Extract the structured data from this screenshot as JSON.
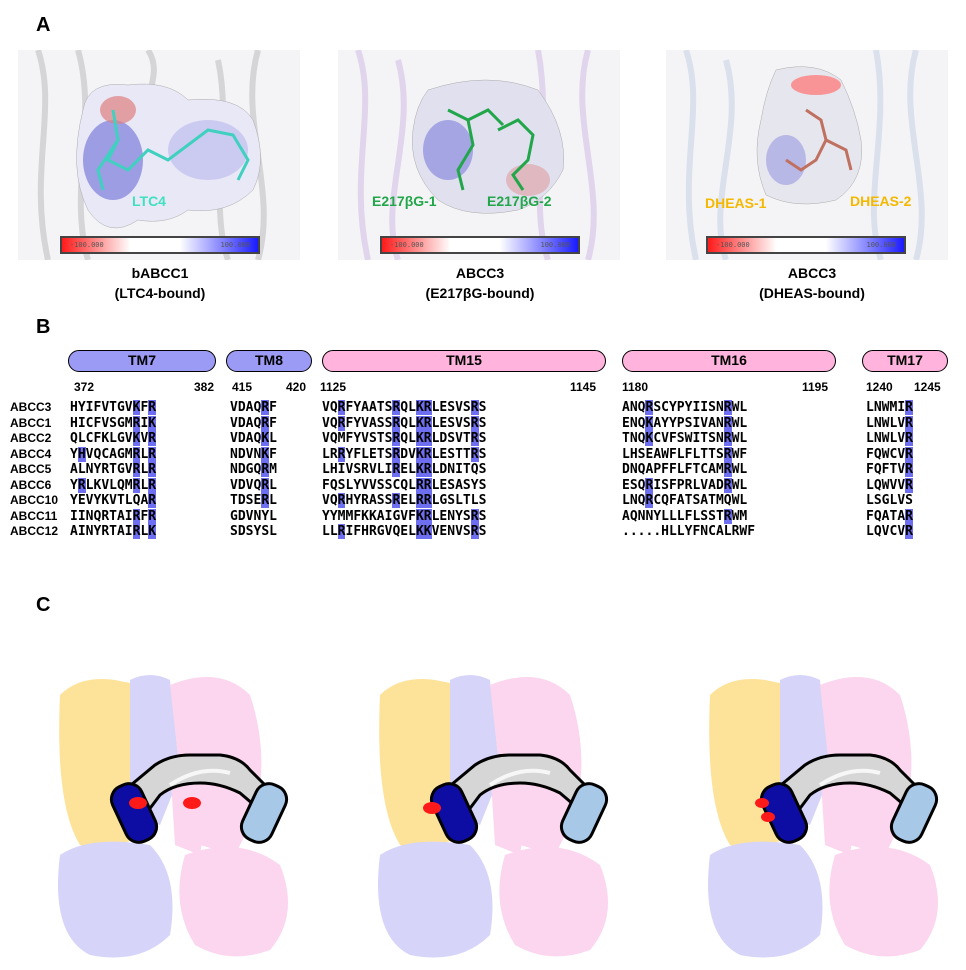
{
  "panels": {
    "a": "A",
    "b": "B",
    "c": "C"
  },
  "panel_a": {
    "structures": [
      {
        "caption_line1": "bABCC1",
        "caption_line2": "(LTC4-bound)",
        "ligands": [
          "LTC4"
        ],
        "ligand_color": "#40e0c0"
      },
      {
        "caption_line1": "ABCC3",
        "caption_line2": "(E217βG-bound)",
        "ligands": [
          "E217βG-1",
          "E217βG-2"
        ],
        "ligand_color": "#22a64a"
      },
      {
        "caption_line1": "ABCC3",
        "caption_line2": "(DHEAS-bound)",
        "ligands": [
          "DHEAS-1",
          "DHEAS-2"
        ],
        "ligand_color": "#f5b800"
      }
    ],
    "colorbar_labels": {
      "left": "-100.000",
      "right": "100.000"
    }
  },
  "panel_b": {
    "tm_segments": [
      {
        "label": "TM7",
        "color": "#9b9bf5"
      },
      {
        "label": "TM8",
        "color": "#9b9bf5"
      },
      {
        "label": "TM15",
        "color": "#ffb3dd"
      },
      {
        "label": "TM16",
        "color": "#ffb3dd"
      },
      {
        "label": "TM17",
        "color": "#ffb3dd"
      }
    ],
    "positions": [
      "372",
      "382",
      "415",
      "420",
      "1125",
      "1145",
      "1180",
      "1195",
      "1240",
      "1245"
    ],
    "names": [
      "ABCC3",
      "ABCC1",
      "ABCC2",
      "ABCC4",
      "ABCC5",
      "ABCC6",
      "ABCC10",
      "ABCC11",
      "ABCC12"
    ],
    "seqs": [
      [
        "HYIFVTGVKFR",
        "VDAQRF",
        "VQRFYAATSRQLKRLESVSRS",
        "ANQRSCYPYIISNRWL",
        "LNWMIR"
      ],
      [
        "HICFVSGMRIK",
        "VDAQRF",
        "VQRFYVASSRQLKRLESVSRS",
        "ENQKAYYPSIVANRWL",
        "LNWLVR"
      ],
      [
        "QLCFKLGVKVR",
        "VDAQKL",
        "VQMFYVSTSRQLKRLDSVTRS",
        "TNQKCVFSWITSNRWL",
        "LNWLVR"
      ],
      [
        "YHVQCAGMRLR",
        "NDVNKF",
        "LRRYFLETSRDVKRLESTTRS",
        "LHSEAWFLFLTTSRWF",
        "FQWCVR"
      ],
      [
        "ALNYRTGVRLR",
        "NDGQRM",
        "LHIVSRVLIRELKRLDNITQS",
        "DNQAPFFLFTCAMRWL",
        "FQFTVR"
      ],
      [
        "YRLKVLQMRLR",
        "VDVQRL",
        "FQSLYVVSSCQLRRLESASYS",
        "ESQRISFPRLVADRWL",
        "LQWVVR"
      ],
      [
        "YEVYKVTLQAR",
        "TDSERL",
        "VQRHYRASSRELRRLGSLTLS",
        "LNQRCQFATSATMQWL",
        "LSGLVS"
      ],
      [
        "IINQRTAIRFR",
        "GDVNYL",
        "YYMMFKKAIGVFKRLENYSRS",
        "AQNNYLLLFLSSTRWM",
        "FQATAR"
      ],
      [
        "AINYRTAIRLK",
        "SDSYSL",
        "LLRIFHRGVQELKKVENVSRS",
        ".....HLLYFNCALRWF",
        "LQVCVR"
      ]
    ]
  },
  "panel_c": {
    "colors": {
      "yellow": "#fde39a",
      "lavender": "#d6d4f8",
      "pink": "#fbd6ee",
      "navy": "#0d0da3",
      "lightblue": "#a8c8e8",
      "gray": "#d6d6d6",
      "red": "#ff1a1a"
    }
  }
}
